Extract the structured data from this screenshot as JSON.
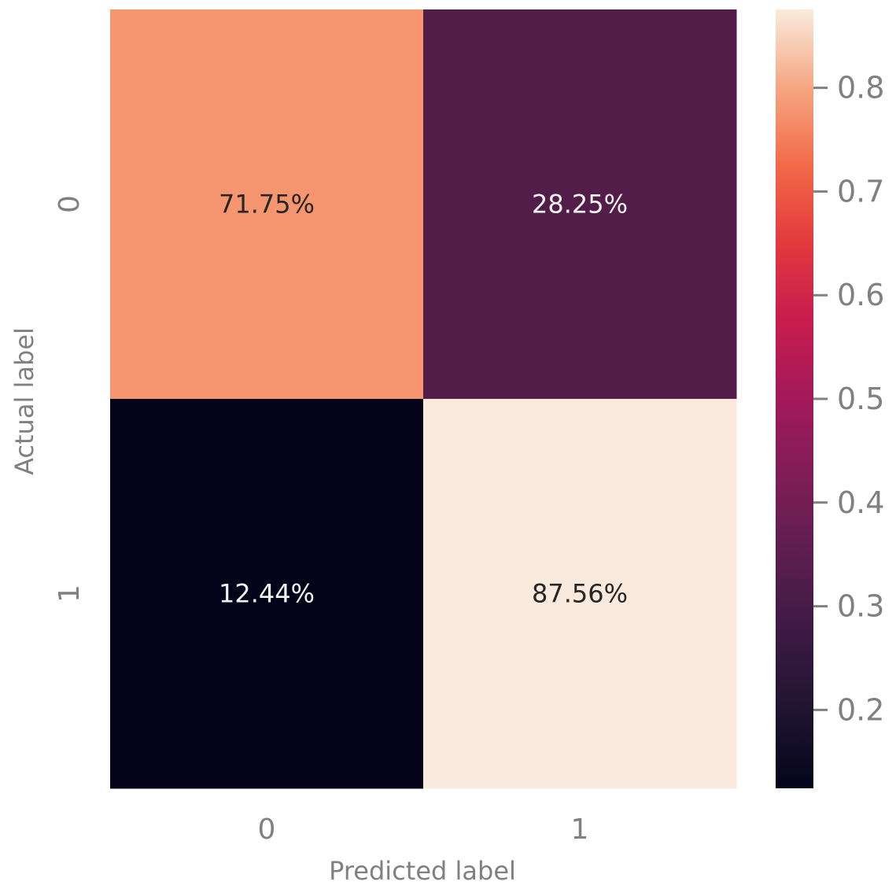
{
  "chart_data": {
    "type": "heatmap",
    "x_categories": [
      "0",
      "1"
    ],
    "y_categories": [
      "0",
      "1"
    ],
    "values": [
      [
        0.7175,
        0.2825
      ],
      [
        0.1244,
        0.8756
      ]
    ],
    "cell_labels": [
      [
        "71.75%",
        "28.25%"
      ],
      [
        "12.44%",
        "87.56%"
      ]
    ],
    "xlabel": "Predicted label",
    "ylabel": "Actual label",
    "colormap": "rocket",
    "colorbar": {
      "ticks": [
        0.2,
        0.3,
        0.4,
        0.5,
        0.6,
        0.7,
        0.8
      ],
      "tick_labels": [
        "0.2",
        "0.3",
        "0.4",
        "0.5",
        "0.6",
        "0.7",
        "0.8"
      ],
      "range": [
        0.1244,
        0.8756
      ]
    },
    "cell_colors": [
      [
        "#f69670",
        "#521d49"
      ],
      [
        "#050319",
        "#fae9dd"
      ]
    ],
    "text_colors": {
      "light": "#f2f2f2",
      "dark": "#262626"
    }
  }
}
